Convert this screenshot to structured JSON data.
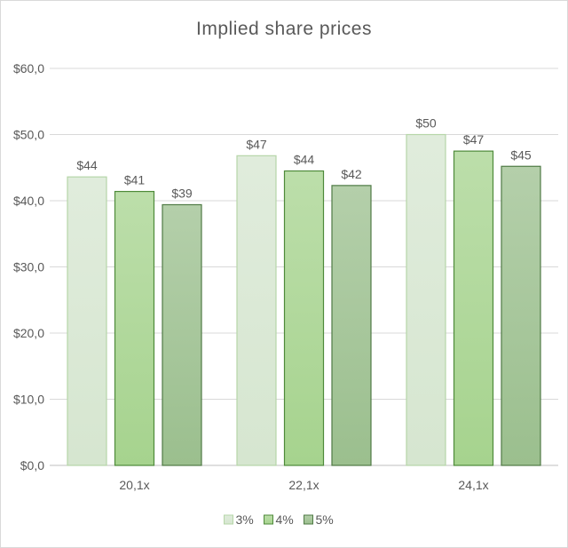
{
  "chart_data": {
    "type": "bar",
    "title": "Implied share prices",
    "categories": [
      "20,1x",
      "22,1x",
      "24,1x"
    ],
    "series": [
      {
        "name": "3%",
        "values": [
          43.6,
          46.8,
          50.0
        ],
        "labels": [
          "$44",
          "$47",
          "$50"
        ],
        "fill": "#d6e6d0",
        "stroke": "#b6d6a8"
      },
      {
        "name": "4%",
        "values": [
          41.4,
          44.5,
          47.5
        ],
        "labels": [
          "$41",
          "$44",
          "$47"
        ],
        "fill": "#a6d38e",
        "stroke": "#4e8a3a"
      },
      {
        "name": "5%",
        "values": [
          39.4,
          42.3,
          45.2
        ],
        "labels": [
          "$39",
          "$42",
          "$45"
        ],
        "fill": "#9bbf8e",
        "stroke": "#4f7a45"
      }
    ],
    "ylim": [
      0,
      60
    ],
    "yticks": [
      0,
      10,
      20,
      30,
      40,
      50,
      60
    ],
    "ytick_labels": [
      "$0,0",
      "$10,0",
      "$20,0",
      "$30,0",
      "$40,0",
      "$50,0",
      "$60,0"
    ],
    "xlabel": "",
    "ylabel": "",
    "grid": true,
    "legend_position": "bottom"
  }
}
